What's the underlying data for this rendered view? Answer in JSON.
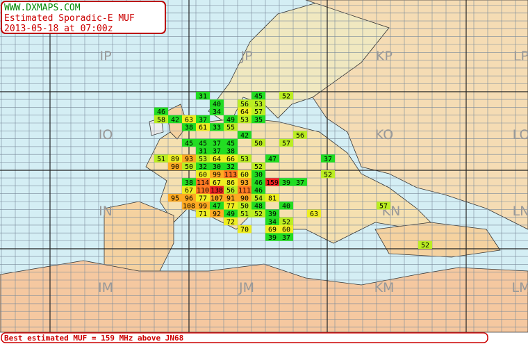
{
  "header": {
    "site": "WWW.DXMAPS.COM",
    "title": "Estimated Sporadic-E MUF",
    "timestamp": "2013-05-18 at 07:00z"
  },
  "grid_labels": [
    "IP",
    "JP",
    "KP",
    "LP",
    "IO",
    "KO",
    "LO",
    "IN",
    "KN",
    "LN",
    "IM",
    "JM",
    "KM",
    "LM"
  ],
  "muf_cells": [
    31,
    45,
    52,
    40,
    56,
    53,
    46,
    34,
    64,
    57,
    58,
    42,
    63,
    37,
    49,
    53,
    35,
    38,
    61,
    33,
    55,
    42,
    56,
    45,
    45,
    37,
    45,
    50,
    57,
    31,
    37,
    38,
    51,
    89,
    93,
    53,
    64,
    66,
    53,
    47,
    37,
    90,
    50,
    32,
    30,
    32,
    52,
    60,
    99,
    113,
    60,
    30,
    52,
    38,
    114,
    67,
    86,
    93,
    46,
    159,
    39,
    37,
    67,
    110,
    138,
    56,
    111,
    46,
    95,
    96,
    77,
    107,
    91,
    90,
    54,
    81,
    108,
    99,
    47,
    77,
    50,
    48,
    40,
    57,
    71,
    92,
    49,
    51,
    52,
    39,
    63,
    72,
    34,
    52,
    70,
    69,
    60,
    39,
    37,
    52
  ],
  "footer": "Best estimated MUF = 159 MHz above JN68"
}
